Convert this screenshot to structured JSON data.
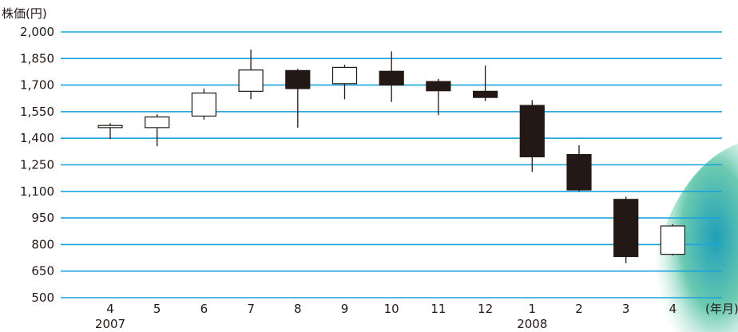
{
  "chart_data": {
    "type": "candlestick",
    "ylabel": "株価(円)",
    "xlabel": "(年月)",
    "ylim": [
      500,
      2000
    ],
    "yticks": [
      "2,000",
      "1,850",
      "1,700",
      "1,550",
      "1,400",
      "1,250",
      "1,100",
      "950",
      "800",
      "650",
      "500"
    ],
    "categories": [
      "4",
      "5",
      "6",
      "7",
      "8",
      "9",
      "10",
      "11",
      "12",
      "1",
      "2",
      "3",
      "4"
    ],
    "year_labels": [
      {
        "index": 0,
        "label": "2007"
      },
      {
        "index": 9,
        "label": "2008"
      }
    ],
    "gridlines": true,
    "candles": [
      {
        "open": 1460,
        "close": 1472,
        "high": 1485,
        "low": 1395
      },
      {
        "open": 1460,
        "close": 1520,
        "high": 1535,
        "low": 1355
      },
      {
        "open": 1525,
        "close": 1655,
        "high": 1680,
        "low": 1505
      },
      {
        "open": 1665,
        "close": 1785,
        "high": 1900,
        "low": 1620
      },
      {
        "open": 1782,
        "close": 1680,
        "high": 1792,
        "low": 1460
      },
      {
        "open": 1708,
        "close": 1800,
        "high": 1815,
        "low": 1620
      },
      {
        "open": 1778,
        "close": 1700,
        "high": 1890,
        "low": 1605
      },
      {
        "open": 1720,
        "close": 1668,
        "high": 1735,
        "low": 1530
      },
      {
        "open": 1665,
        "close": 1630,
        "high": 1810,
        "low": 1610
      },
      {
        "open": 1585,
        "close": 1295,
        "high": 1615,
        "low": 1210
      },
      {
        "open": 1308,
        "close": 1108,
        "high": 1360,
        "low": 1098
      },
      {
        "open": 1055,
        "close": 732,
        "high": 1070,
        "low": 695
      },
      {
        "open": 745,
        "close": 905,
        "high": 915,
        "low": 738
      }
    ],
    "colors": {
      "grid": "#1aa3dc",
      "up_fill": "#ffffff",
      "down_fill": "#231815",
      "stroke": "#231815",
      "decor": "#8fcfae"
    }
  }
}
